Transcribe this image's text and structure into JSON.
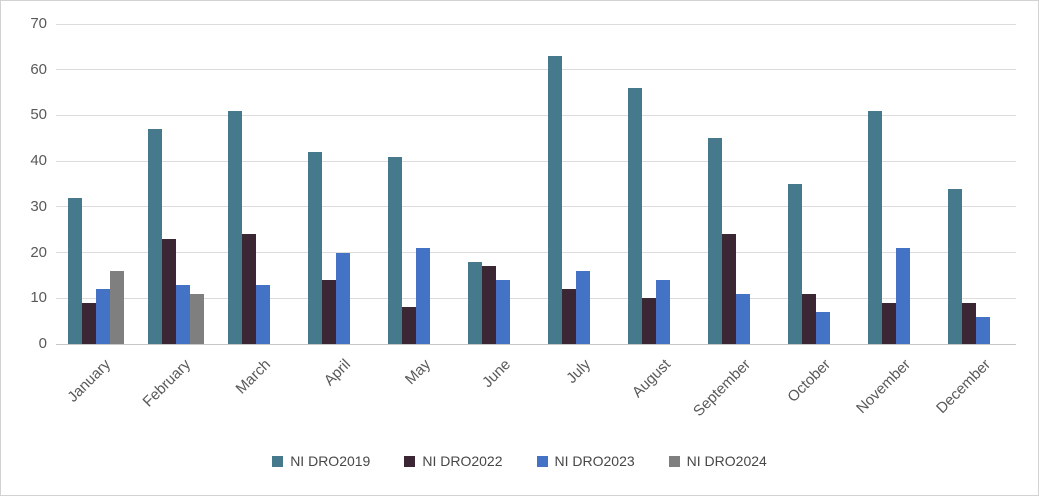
{
  "chart_data": {
    "type": "bar",
    "title": "",
    "xlabel": "",
    "ylabel": "",
    "categories": [
      "January",
      "February",
      "March",
      "April",
      "May",
      "June",
      "July",
      "August",
      "September",
      "October",
      "November",
      "December"
    ],
    "series": [
      {
        "name": "NI DRO2019",
        "color": "#45798B",
        "values": [
          32,
          47,
          51,
          42,
          41,
          18,
          63,
          56,
          45,
          35,
          51,
          34
        ]
      },
      {
        "name": "NI DRO2022",
        "color": "#3A2733",
        "values": [
          9,
          23,
          24,
          14,
          8,
          17,
          12,
          10,
          24,
          11,
          9,
          9
        ]
      },
      {
        "name": "NI DRO2023",
        "color": "#4472C4",
        "values": [
          12,
          13,
          13,
          20,
          21,
          14,
          16,
          14,
          11,
          7,
          21,
          6
        ]
      },
      {
        "name": "NI DRO2024",
        "color": "#7F7F7F",
        "values": [
          16,
          11,
          null,
          null,
          null,
          null,
          null,
          null,
          null,
          null,
          null,
          null
        ]
      }
    ],
    "ylim": [
      0,
      70
    ],
    "yticks": [
      0,
      10,
      20,
      30,
      40,
      50,
      60,
      70
    ],
    "grid": true,
    "legend_position": "bottom"
  },
  "colors": {
    "axis_text": "#595959",
    "legend_text": "#474747",
    "gridline": "#dcdcdc",
    "axis_line": "#c6c6c6",
    "background": "#ffffff",
    "frame_border": "#d2d2d2"
  }
}
